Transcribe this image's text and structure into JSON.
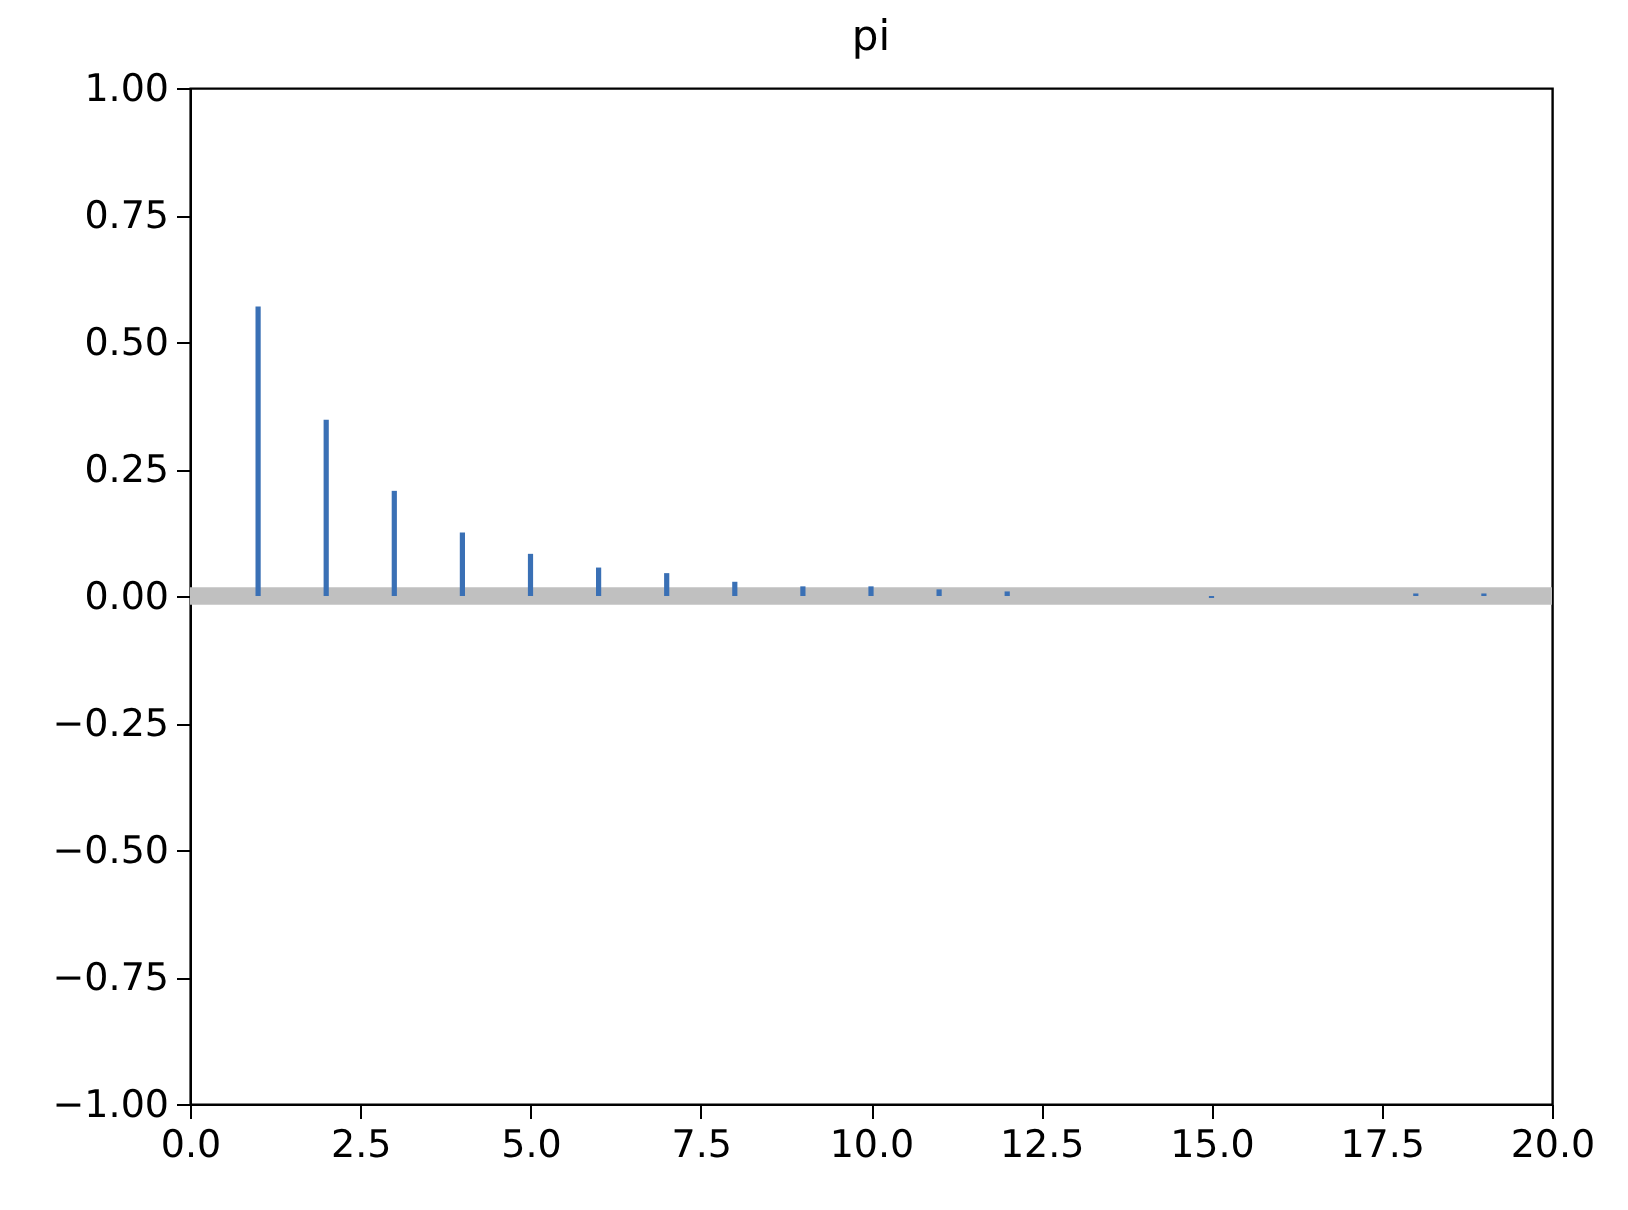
{
  "chart_data": {
    "type": "bar",
    "title": "pi",
    "x": [
      1,
      2,
      3,
      4,
      5,
      6,
      7,
      8,
      9,
      10,
      11,
      12,
      13,
      14,
      15,
      16,
      17,
      18,
      19
    ],
    "values": [
      0.57,
      0.347,
      0.207,
      0.125,
      0.083,
      0.056,
      0.045,
      0.028,
      0.019,
      0.019,
      0.013,
      0.009,
      null,
      null,
      -0.004,
      null,
      null,
      0.005,
      0.005
    ],
    "color": "#3a70b5",
    "xlim": [
      0,
      20
    ],
    "xticks": [
      {
        "value": 0,
        "label": "0.0"
      },
      {
        "value": 2.5,
        "label": "2.5"
      },
      {
        "value": 5,
        "label": "5.0"
      },
      {
        "value": 7.5,
        "label": "7.5"
      },
      {
        "value": 10,
        "label": "10.0"
      },
      {
        "value": 12.5,
        "label": "12.5"
      },
      {
        "value": 15,
        "label": "15.0"
      },
      {
        "value": 17.5,
        "label": "17.5"
      },
      {
        "value": 20,
        "label": "20.0"
      }
    ],
    "ylim": [
      -1,
      1
    ],
    "yticks": [
      {
        "value": -1,
        "label": "−1.00"
      },
      {
        "value": -0.75,
        "label": "−0.75"
      },
      {
        "value": -0.5,
        "label": "−0.50"
      },
      {
        "value": -0.25,
        "label": "−0.25"
      },
      {
        "value": 0,
        "label": "0.00"
      },
      {
        "value": 0.25,
        "label": "0.25"
      },
      {
        "value": 0.5,
        "label": "0.50"
      },
      {
        "value": 0.75,
        "label": "0.75"
      },
      {
        "value": 1,
        "label": "1.00"
      }
    ],
    "bands": [
      {
        "axis": "y",
        "from": -0.017,
        "to": 0.017,
        "color": "#c0c0c0"
      }
    ],
    "grid": false
  }
}
